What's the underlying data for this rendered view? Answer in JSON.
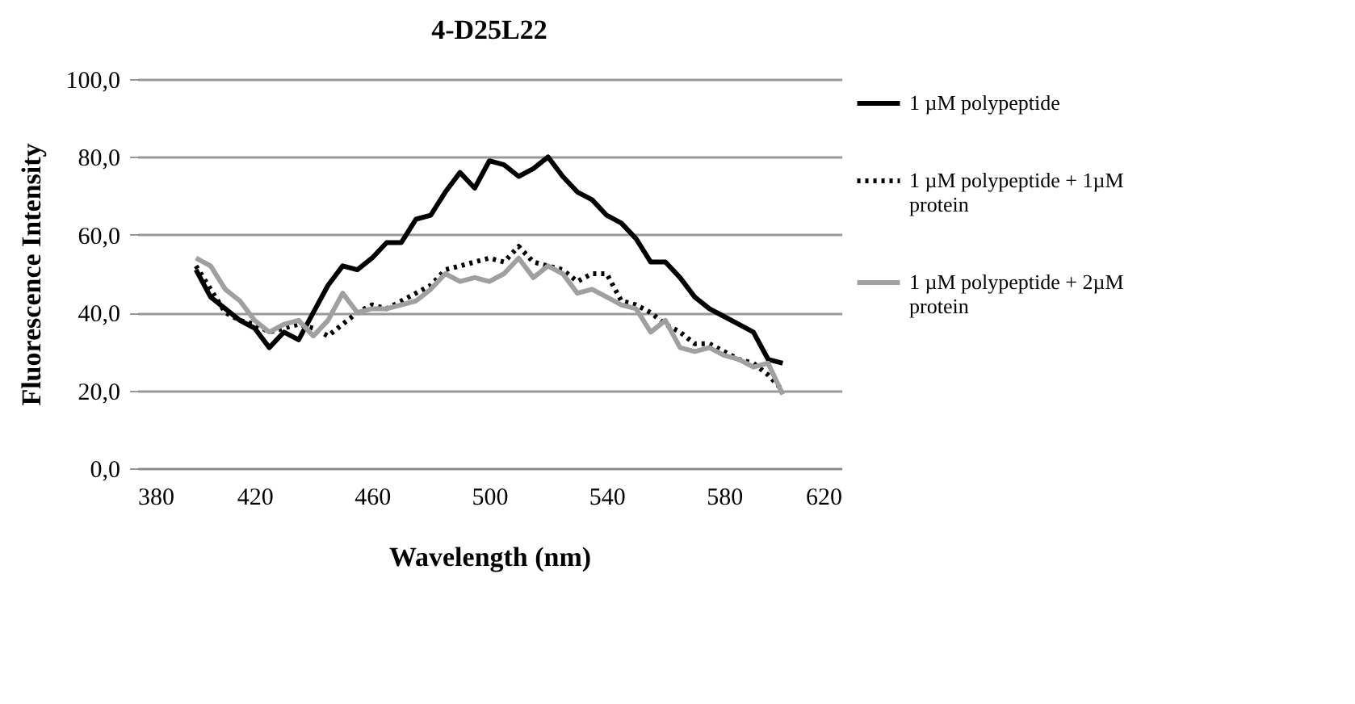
{
  "chart_data": {
    "type": "line",
    "title": "4-D25L22",
    "xlabel": "Wavelength (nm)",
    "ylabel": "Fluorescence Intensity",
    "x": [
      400,
      405,
      410,
      415,
      420,
      425,
      430,
      435,
      440,
      445,
      450,
      455,
      460,
      465,
      470,
      475,
      480,
      485,
      490,
      495,
      500,
      505,
      510,
      515,
      520,
      525,
      530,
      535,
      540,
      545,
      550,
      555,
      560,
      565,
      570,
      575,
      580,
      585,
      590,
      595,
      600
    ],
    "series": [
      {
        "name": "1 µM polypeptide",
        "color": "#000000",
        "line_style": "solid",
        "values": [
          51,
          44,
          41,
          38,
          36,
          31,
          35,
          33,
          40,
          47,
          52,
          51,
          54,
          58,
          58,
          64,
          65,
          71,
          76,
          72,
          79,
          78,
          75,
          77,
          80,
          75,
          71,
          69,
          65,
          63,
          59,
          53,
          53,
          49,
          44,
          41,
          39,
          37,
          35,
          28,
          27
        ]
      },
      {
        "name": "1 µM polypeptide + 1µM protein",
        "color": "#000000",
        "line_style": "dotted",
        "values": [
          52,
          46,
          40,
          38,
          37,
          35,
          36,
          37,
          36,
          34,
          37,
          40,
          42,
          41,
          43,
          45,
          47,
          51,
          52,
          53,
          54,
          53,
          57,
          53,
          52,
          51,
          48,
          50,
          50,
          43,
          42,
          40,
          37,
          35,
          32,
          32,
          30,
          28,
          27,
          24,
          20
        ]
      },
      {
        "name": "1 µM polypeptide + 2µM protein",
        "color": "#a0a0a0",
        "line_style": "solid",
        "values": [
          54,
          52,
          46,
          43,
          38,
          35,
          37,
          38,
          34,
          38,
          45,
          40,
          41,
          41,
          42,
          43,
          46,
          50,
          48,
          49,
          48,
          50,
          54,
          49,
          52,
          50,
          45,
          46,
          44,
          42,
          41,
          35,
          38,
          31,
          30,
          31,
          29,
          28,
          26,
          27,
          19
        ]
      }
    ],
    "xlim": [
      380,
      620
    ],
    "xticks": [
      380,
      420,
      460,
      500,
      540,
      580,
      620
    ],
    "ylim": [
      0,
      100
    ],
    "yticks": [
      {
        "value": 0,
        "label": "0,0"
      },
      {
        "value": 20,
        "label": "20,0"
      },
      {
        "value": 40,
        "label": "40,0"
      },
      {
        "value": 60,
        "label": "60,0"
      },
      {
        "value": 80,
        "label": "80,0"
      },
      {
        "value": 100,
        "label": "100,0"
      }
    ],
    "grid": "y",
    "legend": "right",
    "marker": "none"
  }
}
